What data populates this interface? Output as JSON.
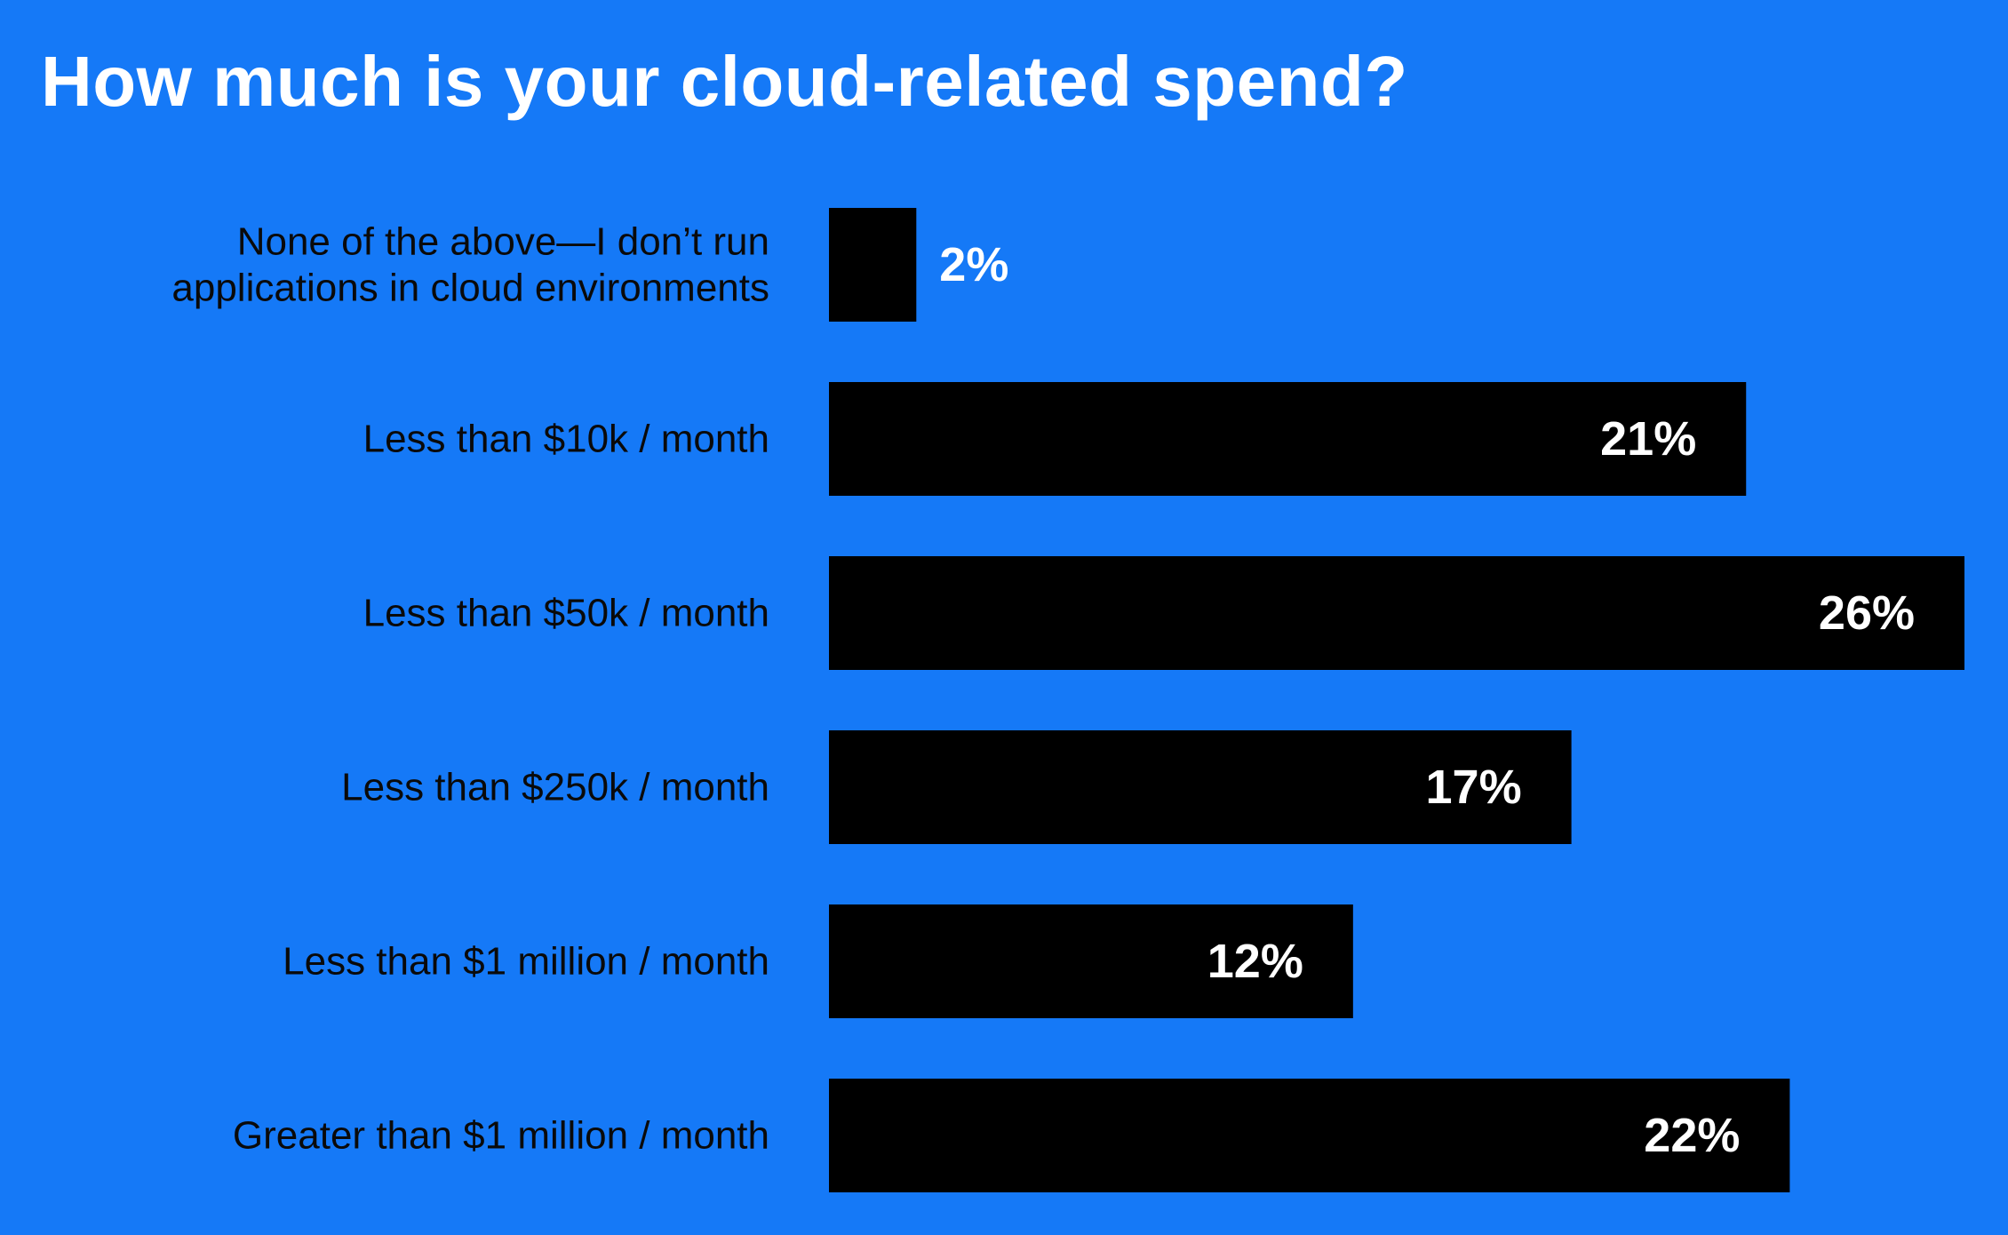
{
  "colors": {
    "background": "#1579F7",
    "bar": "#000000",
    "title": "#FFFFFF",
    "category_text": "#0A0A0A",
    "value_text": "#FFFFFF"
  },
  "chart_data": {
    "type": "bar",
    "orientation": "horizontal",
    "title": "How much is your cloud-related spend?",
    "xlabel": "",
    "ylabel": "",
    "xlim": [
      0,
      26
    ],
    "grid": false,
    "unit": "%",
    "categories": [
      [
        "None of the above—I don’t run",
        "applications in cloud environments"
      ],
      [
        "Less than $10k / month"
      ],
      [
        "Less than $50k / month"
      ],
      [
        "Less than $250k / month"
      ],
      [
        "Less than $1 million / month"
      ],
      [
        "Greater than $1 million / month"
      ]
    ],
    "values": [
      2,
      21,
      26,
      17,
      12,
      22
    ],
    "value_labels": [
      "2%",
      "21%",
      "26%",
      "17%",
      "12%",
      "22%"
    ]
  }
}
